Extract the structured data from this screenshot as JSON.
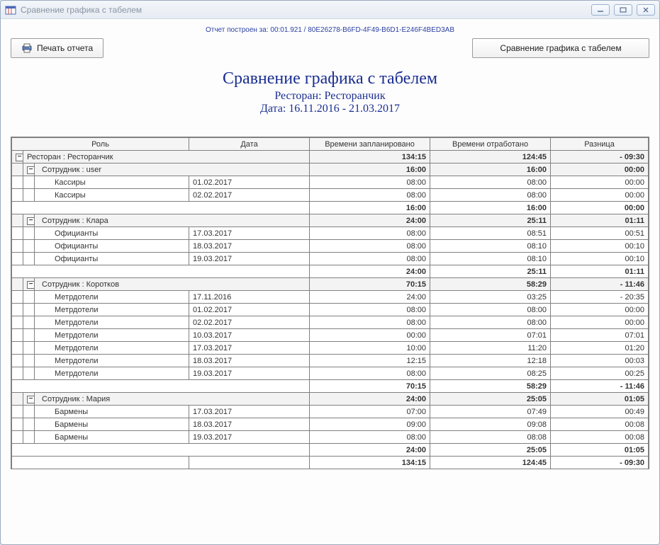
{
  "window": {
    "title": "Сравнение графика с табелем"
  },
  "buildLine": "Отчет построен за: 00:01.921 / 80E26278-B6FD-4F49-B6D1-E246F4BED3AB",
  "buttons": {
    "print": "Печать отчета",
    "compare": "Сравнение графика с табелем"
  },
  "report": {
    "title": "Сравнение графика с табелем",
    "restaurantLabel": "Ресторан: Ресторанчик",
    "dateRange": "Дата: 16.11.2016 - 21.03.2017"
  },
  "columns": {
    "role": "Роль",
    "date": "Дата",
    "planned": "Времени запланировано",
    "worked": "Времени отработано",
    "diff": "Разница"
  },
  "topGroup": {
    "label": "Ресторан : Ресторанчик",
    "planned": "134:15",
    "worked": "124:45",
    "diff": "- 09:30"
  },
  "groups": [
    {
      "label": "Сотрудник : user",
      "planned": "16:00",
      "worked": "16:00",
      "diff": "00:00",
      "rows": [
        {
          "role": "Кассиры",
          "date": "01.02.2017",
          "planned": "08:00",
          "worked": "08:00",
          "diff": "00:00"
        },
        {
          "role": "Кассиры",
          "date": "02.02.2017",
          "planned": "08:00",
          "worked": "08:00",
          "diff": "00:00"
        }
      ],
      "subtotal": {
        "planned": "16:00",
        "worked": "16:00",
        "diff": "00:00"
      }
    },
    {
      "label": "Сотрудник : Клара",
      "planned": "24:00",
      "worked": "25:11",
      "diff": "01:11",
      "rows": [
        {
          "role": "Официанты",
          "date": "17.03.2017",
          "planned": "08:00",
          "worked": "08:51",
          "diff": "00:51"
        },
        {
          "role": "Официанты",
          "date": "18.03.2017",
          "planned": "08:00",
          "worked": "08:10",
          "diff": "00:10"
        },
        {
          "role": "Официанты",
          "date": "19.03.2017",
          "planned": "08:00",
          "worked": "08:10",
          "diff": "00:10"
        }
      ],
      "subtotal": {
        "planned": "24:00",
        "worked": "25:11",
        "diff": "01:11"
      }
    },
    {
      "label": "Сотрудник : Коротков",
      "planned": "70:15",
      "worked": "58:29",
      "diff": "- 11:46",
      "rows": [
        {
          "role": "Метрдотели",
          "date": "17.11.2016",
          "planned": "24:00",
          "worked": "03:25",
          "diff": "- 20:35"
        },
        {
          "role": "Метрдотели",
          "date": "01.02.2017",
          "planned": "08:00",
          "worked": "08:00",
          "diff": "00:00"
        },
        {
          "role": "Метрдотели",
          "date": "02.02.2017",
          "planned": "08:00",
          "worked": "08:00",
          "diff": "00:00"
        },
        {
          "role": "Метрдотели",
          "date": "10.03.2017",
          "planned": "00:00",
          "worked": "07:01",
          "diff": "07:01"
        },
        {
          "role": "Метрдотели",
          "date": "17.03.2017",
          "planned": "10:00",
          "worked": "11:20",
          "diff": "01:20"
        },
        {
          "role": "Метрдотели",
          "date": "18.03.2017",
          "planned": "12:15",
          "worked": "12:18",
          "diff": "00:03"
        },
        {
          "role": "Метрдотели",
          "date": "19.03.2017",
          "planned": "08:00",
          "worked": "08:25",
          "diff": "00:25"
        }
      ],
      "subtotal": {
        "planned": "70:15",
        "worked": "58:29",
        "diff": "- 11:46"
      }
    },
    {
      "label": "Сотрудник : Мария",
      "planned": "24:00",
      "worked": "25:05",
      "diff": "01:05",
      "rows": [
        {
          "role": "Бармены",
          "date": "17.03.2017",
          "planned": "07:00",
          "worked": "07:49",
          "diff": "00:49"
        },
        {
          "role": "Бармены",
          "date": "18.03.2017",
          "planned": "09:00",
          "worked": "09:08",
          "diff": "00:08"
        },
        {
          "role": "Бармены",
          "date": "19.03.2017",
          "planned": "08:00",
          "worked": "08:08",
          "diff": "00:08"
        }
      ],
      "subtotal": {
        "planned": "24:00",
        "worked": "25:05",
        "diff": "01:05"
      }
    }
  ],
  "grandTotal": {
    "planned": "134:15",
    "worked": "124:45",
    "diff": "- 09:30"
  },
  "colors": {
    "accent": "#1a2e8f",
    "border": "#808080",
    "windowBorder": "#9aaac0"
  }
}
